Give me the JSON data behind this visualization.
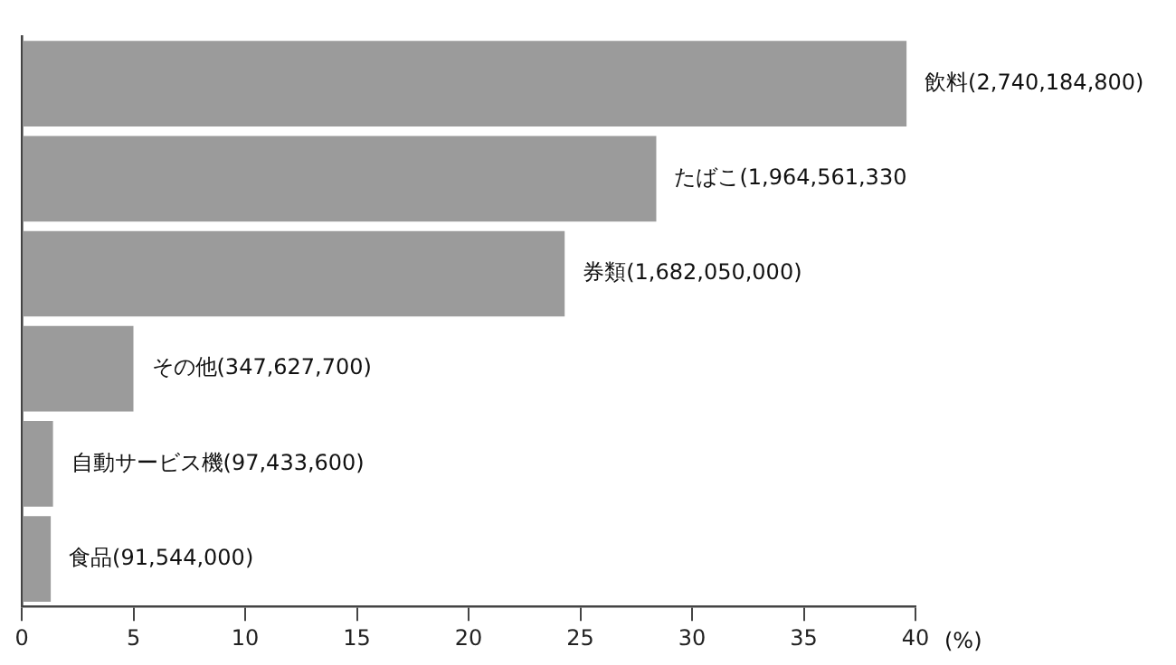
{
  "chart_data": {
    "type": "bar",
    "orientation": "horizontal",
    "xlabel": "(%)",
    "categories": [
      null,
      null,
      null,
      null,
      null,
      null
    ],
    "annotations": [
      "飲料(2,740,184,800)",
      "たばこ(1,964,561,330",
      "券類(1,682,050,000)",
      "その他(347,627,700)",
      "自動サービス機(97,433,600)",
      "食品(91,544,000)"
    ],
    "values": [
      39.6,
      28.4,
      24.3,
      5.0,
      1.4,
      1.3
    ],
    "color": "#9b9b9b",
    "xlim": [
      0,
      40
    ],
    "xticks": [
      0,
      5,
      10,
      15,
      20,
      25,
      30,
      35,
      40
    ],
    "grid": false,
    "legend": false
  }
}
